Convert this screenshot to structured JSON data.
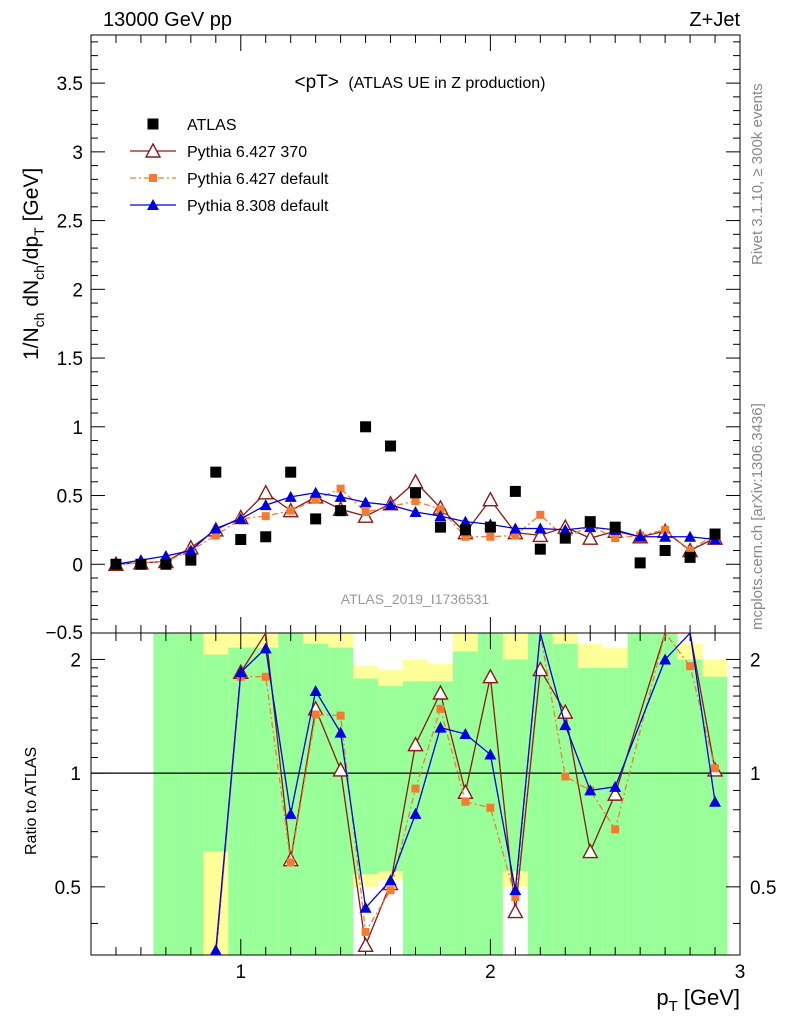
{
  "header": {
    "left": "13000 GeV pp",
    "right": "Z+Jet"
  },
  "side_text": {
    "top": "Rivet 3.1.10, ≥ 300k events",
    "bottom": "mcplots.cern.ch [arXiv:1306.3436]"
  },
  "chart_data": {
    "type": "line",
    "title_main": "<pT>",
    "title_sub": "(ATLAS UE in Z production)",
    "watermark": "ATLAS_2019_I1736531",
    "xlabel": "p",
    "xlabel_sub": "T",
    "xlabel_unit": "[GeV]",
    "ylabel": "1/N_ch dN_ch/dp_T [GeV]",
    "ylabel_parts": [
      "1/N",
      "ch",
      " dN",
      "ch",
      "/dp",
      "T",
      " [GeV]"
    ],
    "ratio_ylabel": "Ratio to ATLAS",
    "xlim": [
      0.4,
      3.0
    ],
    "ylim": [
      -0.5,
      3.85
    ],
    "ratio_ylim": [
      0.33,
      2.35
    ],
    "x_ticks": [
      1,
      2,
      3
    ],
    "y_ticks": [
      0,
      0.5,
      1,
      1.5,
      2,
      2.5,
      3,
      3.5
    ],
    "y_tick_labels": [
      "0",
      "0.5",
      "1",
      "1.5",
      "2",
      "2.5",
      "3",
      "3.5"
    ],
    "ratio_ticks": [
      0.5,
      1,
      2
    ],
    "ratio_tick_labels": [
      "0.5",
      "1",
      "2"
    ],
    "x_tick_labels": [
      "1",
      "2",
      "3"
    ],
    "cut_label": "−0.5",
    "x": [
      0.5,
      0.6,
      0.7,
      0.8,
      0.9,
      1.0,
      1.1,
      1.2,
      1.3,
      1.4,
      1.5,
      1.6,
      1.7,
      1.8,
      1.9,
      2.0,
      2.1,
      2.2,
      2.3,
      2.4,
      2.5,
      2.6,
      2.7,
      2.8,
      2.9
    ],
    "series": [
      {
        "name": "ATLAS",
        "color": "#000000",
        "marker": "square",
        "values": [
          0.0,
          0.0,
          0.0,
          0.03,
          0.67,
          0.18,
          0.2,
          0.67,
          0.33,
          0.39,
          1.0,
          0.86,
          0.52,
          0.27,
          0.25,
          0.27,
          0.53,
          0.11,
          0.19,
          0.31,
          0.27,
          0.01,
          0.1,
          0.05,
          0.22
        ]
      },
      {
        "name": "Pythia 6.427 370",
        "color": "#8b1a1a",
        "marker": "triangle-open",
        "values": [
          0.0,
          0.01,
          0.02,
          0.12,
          0.25,
          0.34,
          0.52,
          0.39,
          0.49,
          0.4,
          0.35,
          0.44,
          0.6,
          0.41,
          0.23,
          0.47,
          0.23,
          0.21,
          0.27,
          0.19,
          0.24,
          0.2,
          0.24,
          0.1,
          0.19
        ]
      },
      {
        "name": "Pythia 6.427 default",
        "color": "#f47a30",
        "marker": "square-small",
        "values": [
          0.0,
          0.01,
          0.02,
          0.1,
          0.21,
          0.33,
          0.35,
          0.39,
          0.47,
          0.55,
          0.38,
          0.42,
          0.46,
          0.4,
          0.2,
          0.2,
          0.21,
          0.36,
          0.19,
          0.28,
          0.19,
          0.21,
          0.25,
          0.1,
          0.22
        ]
      },
      {
        "name": "Pythia 8.308 default",
        "color": "#0000e0",
        "marker": "triangle-filled",
        "values": [
          0.0,
          0.03,
          0.06,
          0.1,
          0.26,
          0.33,
          0.43,
          0.49,
          0.52,
          0.49,
          0.45,
          0.43,
          0.38,
          0.35,
          0.31,
          0.29,
          0.26,
          0.26,
          0.25,
          0.27,
          0.25,
          0.2,
          0.2,
          0.2,
          0.18
        ]
      }
    ],
    "ratio_series": [
      {
        "name": "Pythia 6.427 370",
        "values": [
          null,
          null,
          null,
          null,
          0.28,
          1.85,
          2.45,
          0.59,
          1.48,
          1.02,
          0.35,
          0.51,
          1.19,
          1.63,
          0.89,
          1.8,
          0.43,
          1.88,
          1.45,
          0.62,
          0.88,
          null,
          2.4,
          2.4,
          1.02
        ]
      },
      {
        "name": "Pythia 6.427 default",
        "values": [
          null,
          null,
          null,
          null,
          0.31,
          1.8,
          1.8,
          0.58,
          1.43,
          1.42,
          0.38,
          0.49,
          0.91,
          1.48,
          0.84,
          0.81,
          0.47,
          2.4,
          0.98,
          0.9,
          0.71,
          null,
          2.4,
          1.92,
          1.03
        ]
      },
      {
        "name": "Pythia 8.308 default",
        "values": [
          null,
          null,
          null,
          null,
          0.34,
          1.85,
          2.14,
          0.78,
          1.65,
          1.28,
          0.44,
          0.52,
          0.78,
          1.32,
          1.27,
          1.12,
          0.49,
          2.4,
          1.34,
          0.9,
          0.92,
          null,
          2.0,
          2.4,
          0.84
        ]
      }
    ],
    "ratio_bands": [
      {
        "x": 0.7,
        "green": [
          0.33,
          2.35
        ],
        "yellow": [
          0.33,
          2.35
        ]
      },
      {
        "x": 0.8,
        "green": [
          0.33,
          2.35
        ],
        "yellow": [
          0.33,
          2.35
        ]
      },
      {
        "x": 0.9,
        "green": [
          0.62,
          2.06
        ],
        "yellow": [
          0.33,
          2.35
        ]
      },
      {
        "x": 1.0,
        "green": [
          0.33,
          2.15
        ],
        "yellow": [
          0.33,
          2.35
        ]
      },
      {
        "x": 1.1,
        "green": [
          0.33,
          2.15
        ],
        "yellow": [
          0.33,
          2.35
        ]
      },
      {
        "x": 1.2,
        "green": [
          0.33,
          2.35
        ],
        "yellow": [
          0.33,
          2.35
        ]
      },
      {
        "x": 1.3,
        "green": [
          0.33,
          2.2
        ],
        "yellow": [
          0.33,
          2.35
        ]
      },
      {
        "x": 1.4,
        "green": [
          0.33,
          2.15
        ],
        "yellow": [
          0.33,
          2.35
        ]
      },
      {
        "x": 1.5,
        "green": [
          0.54,
          1.78
        ],
        "yellow": [
          0.5,
          1.92
        ]
      },
      {
        "x": 1.6,
        "green": [
          0.55,
          1.7
        ],
        "yellow": [
          0.52,
          1.88
        ]
      },
      {
        "x": 1.7,
        "green": [
          0.33,
          1.75
        ],
        "yellow": [
          0.33,
          2.0
        ]
      },
      {
        "x": 1.8,
        "green": [
          0.33,
          1.75
        ],
        "yellow": [
          0.33,
          1.95
        ]
      },
      {
        "x": 1.9,
        "green": [
          0.33,
          2.1
        ],
        "yellow": [
          0.33,
          2.35
        ]
      },
      {
        "x": 2.0,
        "green": [
          0.33,
          2.35
        ],
        "yellow": [
          0.33,
          2.35
        ]
      },
      {
        "x": 2.1,
        "green": [
          0.55,
          2.0
        ],
        "yellow": [
          0.5,
          2.35
        ]
      },
      {
        "x": 2.2,
        "green": [
          0.33,
          2.35
        ],
        "yellow": [
          0.33,
          2.35
        ]
      },
      {
        "x": 2.3,
        "green": [
          0.33,
          2.2
        ],
        "yellow": [
          0.33,
          2.35
        ]
      },
      {
        "x": 2.4,
        "green": [
          0.33,
          1.9
        ],
        "yellow": [
          0.33,
          2.2
        ]
      },
      {
        "x": 2.5,
        "green": [
          0.33,
          1.9
        ],
        "yellow": [
          0.33,
          2.15
        ]
      },
      {
        "x": 2.6,
        "green": [
          0.33,
          2.35
        ],
        "yellow": [
          0.33,
          2.35
        ]
      },
      {
        "x": 2.7,
        "green": [
          0.33,
          2.35
        ],
        "yellow": [
          0.33,
          2.35
        ]
      },
      {
        "x": 2.8,
        "green": [
          0.33,
          2.0
        ],
        "yellow": [
          0.33,
          2.2
        ]
      },
      {
        "x": 2.9,
        "green": [
          0.33,
          1.8
        ],
        "yellow": [
          0.33,
          2.0
        ]
      }
    ],
    "legend_position": "top-left",
    "grid": false
  }
}
